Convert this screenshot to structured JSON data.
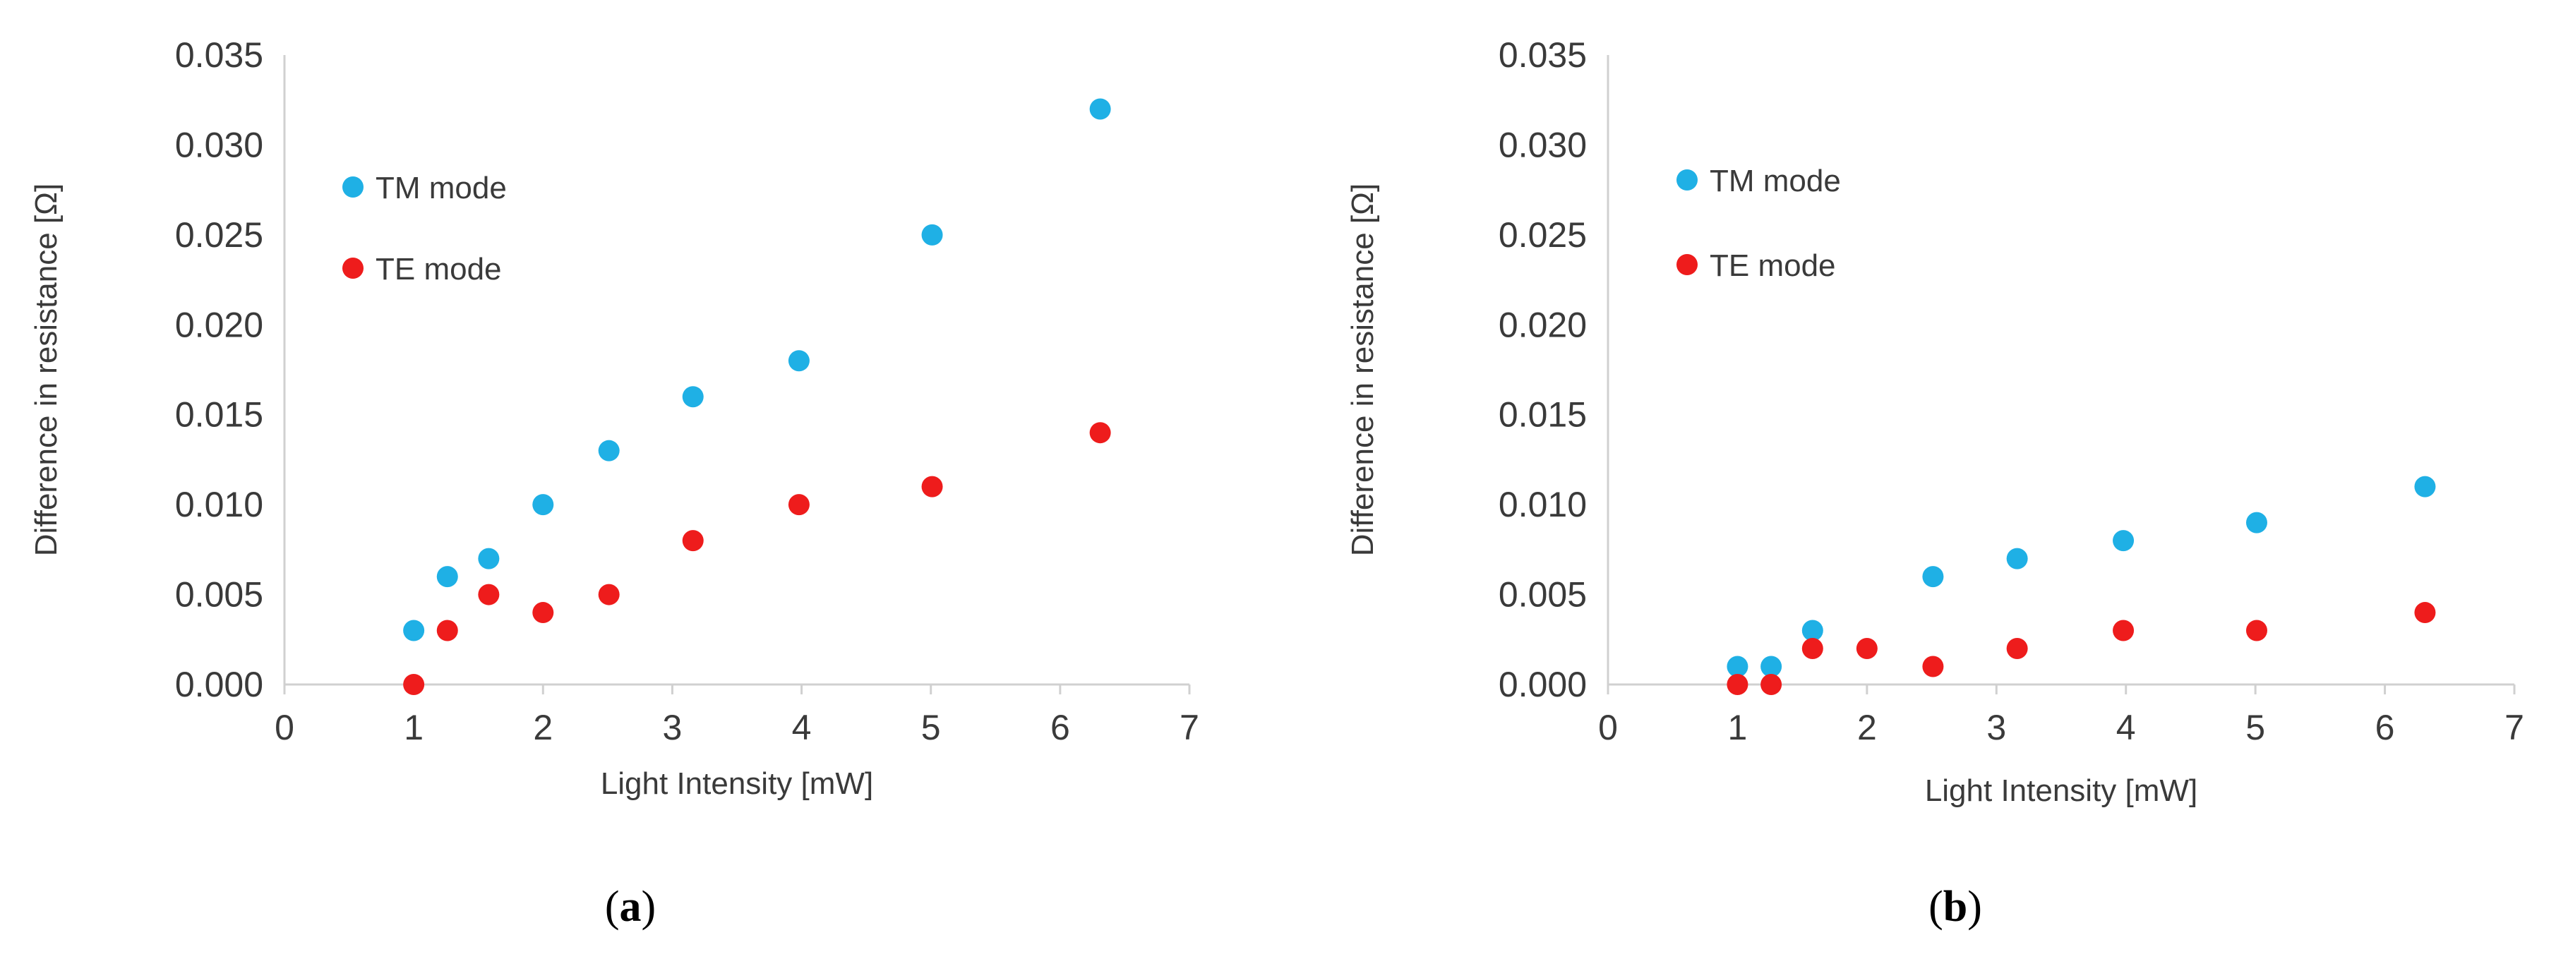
{
  "colors": {
    "tm": "#1FB0E5",
    "te": "#EE1C1C",
    "axis": "#D0D0D0",
    "text": "#3A3A3A"
  },
  "chart_data": [
    {
      "panel": "a",
      "type": "scatter",
      "caption_label": "a",
      "title": "",
      "xlabel": "Light Intensity [mW]",
      "ylabel": "Difference in resistance  [Ω]",
      "xlim": [
        0,
        7
      ],
      "ylim": [
        0,
        0.035
      ],
      "xticks": [
        "0",
        "1",
        "2",
        "3",
        "4",
        "5",
        "6",
        "7"
      ],
      "yticks": [
        "0.000",
        "0.005",
        "0.010",
        "0.015",
        "0.020",
        "0.025",
        "0.030",
        "0.035"
      ],
      "grid": false,
      "legend": "top-left",
      "series": [
        {
          "name": "TM mode",
          "color": "#1FB0E5",
          "x": [
            1.0,
            1.26,
            1.58,
            2.0,
            2.51,
            3.16,
            3.98,
            5.01,
            6.31
          ],
          "y": [
            0.003,
            0.006,
            0.007,
            0.01,
            0.013,
            0.016,
            0.018,
            0.025,
            0.032
          ]
        },
        {
          "name": "TE mode",
          "color": "#EE1C1C",
          "x": [
            1.0,
            1.26,
            1.58,
            2.0,
            2.51,
            3.16,
            3.98,
            5.01,
            6.31
          ],
          "y": [
            0.0,
            0.003,
            0.005,
            0.004,
            0.005,
            0.008,
            0.01,
            0.011,
            0.014
          ]
        }
      ]
    },
    {
      "panel": "b",
      "type": "scatter",
      "caption_label": "b",
      "title": "",
      "xlabel": "Light Intensity [mW]",
      "ylabel": "Difference in resistance  [Ω]",
      "xlim": [
        0,
        7
      ],
      "ylim": [
        0,
        0.035
      ],
      "xticks": [
        "0",
        "1",
        "2",
        "3",
        "4",
        "5",
        "6",
        "7"
      ],
      "yticks": [
        "0.000",
        "0.005",
        "0.010",
        "0.015",
        "0.020",
        "0.025",
        "0.030",
        "0.035"
      ],
      "grid": false,
      "legend": "top-left",
      "series": [
        {
          "name": "TM mode",
          "color": "#1FB0E5",
          "x": [
            1.0,
            1.26,
            1.58,
            2.51,
            3.16,
            3.98,
            5.01,
            6.31
          ],
          "y": [
            0.001,
            0.001,
            0.003,
            0.006,
            0.007,
            0.008,
            0.009,
            0.011
          ]
        },
        {
          "name": "TE mode",
          "color": "#EE1C1C",
          "x": [
            1.0,
            1.26,
            1.58,
            2.0,
            2.51,
            3.16,
            3.98,
            5.01,
            6.31
          ],
          "y": [
            0.0,
            0.0,
            0.002,
            0.002,
            0.001,
            0.002,
            0.003,
            0.003,
            0.004
          ]
        }
      ]
    }
  ]
}
